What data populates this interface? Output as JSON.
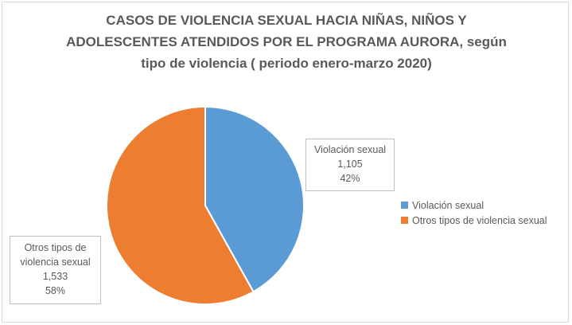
{
  "chart_data": {
    "type": "pie",
    "title_lines": [
      "CASOS DE VIOLENCIA SEXUAL HACIA NIÑAS, NIÑOS Y",
      "ADOLESCENTES ATENDIDOS POR EL PROGRAMA AURORA, según",
      "tipo de violencia ( periodo enero-marzo 2020)"
    ],
    "categories": [
      "Violación sexual",
      "Otros tipos de violencia sexual"
    ],
    "values": [
      1105,
      1533
    ],
    "value_labels": [
      "1,105",
      "1,533"
    ],
    "percent_labels": [
      "42%",
      "58%"
    ],
    "label_lines": [
      [
        "Violación sexual"
      ],
      [
        "Otros tipos de",
        "violencia sexual"
      ]
    ],
    "colors": [
      "#5b9bd5",
      "#ed7d31"
    ],
    "legend_position": "right"
  }
}
